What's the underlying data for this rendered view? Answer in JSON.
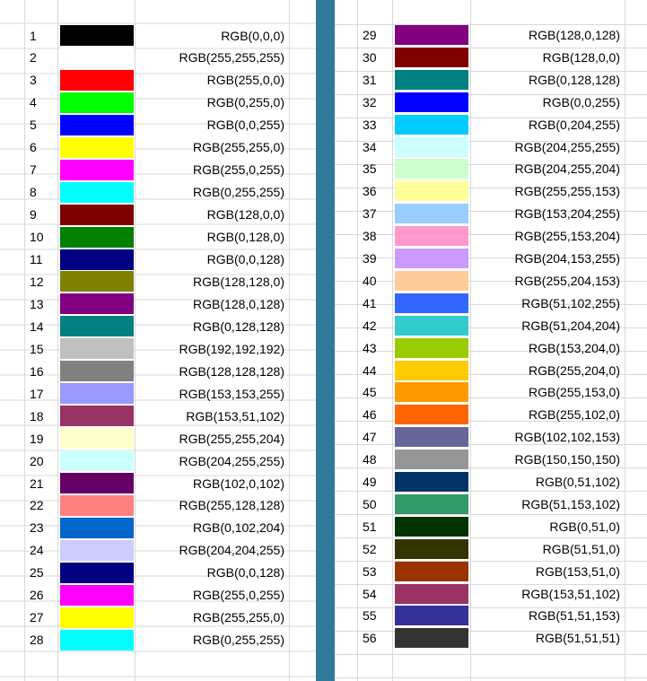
{
  "left_rows": [
    {
      "num": "1",
      "rgb": "RGB(0,0,0)",
      "color": "#000000"
    },
    {
      "num": "2",
      "rgb": "RGB(255,255,255)",
      "color": "#ffffff"
    },
    {
      "num": "3",
      "rgb": "RGB(255,0,0)",
      "color": "#ff0000"
    },
    {
      "num": "4",
      "rgb": "RGB(0,255,0)",
      "color": "#00ff00"
    },
    {
      "num": "5",
      "rgb": "RGB(0,0,255)",
      "color": "#0000ff"
    },
    {
      "num": "6",
      "rgb": "RGB(255,255,0)",
      "color": "#ffff00"
    },
    {
      "num": "7",
      "rgb": "RGB(255,0,255)",
      "color": "#ff00ff"
    },
    {
      "num": "8",
      "rgb": "RGB(0,255,255)",
      "color": "#00ffff"
    },
    {
      "num": "9",
      "rgb": "RGB(128,0,0)",
      "color": "#800000"
    },
    {
      "num": "10",
      "rgb": "RGB(0,128,0)",
      "color": "#008000"
    },
    {
      "num": "11",
      "rgb": "RGB(0,0,128)",
      "color": "#000080"
    },
    {
      "num": "12",
      "rgb": "RGB(128,128,0)",
      "color": "#808000"
    },
    {
      "num": "13",
      "rgb": "RGB(128,0,128)",
      "color": "#800080"
    },
    {
      "num": "14",
      "rgb": "RGB(0,128,128)",
      "color": "#008080"
    },
    {
      "num": "15",
      "rgb": "RGB(192,192,192)",
      "color": "#c0c0c0"
    },
    {
      "num": "16",
      "rgb": "RGB(128,128,128)",
      "color": "#808080"
    },
    {
      "num": "17",
      "rgb": "RGB(153,153,255)",
      "color": "#9999ff"
    },
    {
      "num": "18",
      "rgb": "RGB(153,51,102)",
      "color": "#993366"
    },
    {
      "num": "19",
      "rgb": "RGB(255,255,204)",
      "color": "#ffffcc"
    },
    {
      "num": "20",
      "rgb": "RGB(204,255,255)",
      "color": "#ccffff"
    },
    {
      "num": "21",
      "rgb": "RGB(102,0,102)",
      "color": "#660066"
    },
    {
      "num": "22",
      "rgb": "RGB(255,128,128)",
      "color": "#ff8080"
    },
    {
      "num": "23",
      "rgb": "RGB(0,102,204)",
      "color": "#0066cc"
    },
    {
      "num": "24",
      "rgb": "RGB(204,204,255)",
      "color": "#ccccff"
    },
    {
      "num": "25",
      "rgb": "RGB(0,0,128)",
      "color": "#000080"
    },
    {
      "num": "26",
      "rgb": "RGB(255,0,255)",
      "color": "#ff00ff"
    },
    {
      "num": "27",
      "rgb": "RGB(255,255,0)",
      "color": "#ffff00"
    },
    {
      "num": "28",
      "rgb": "RGB(0,255,255)",
      "color": "#00ffff"
    }
  ],
  "right_rows": [
    {
      "num": "29",
      "rgb": "RGB(128,0,128)",
      "color": "#800080"
    },
    {
      "num": "30",
      "rgb": "RGB(128,0,0)",
      "color": "#800000"
    },
    {
      "num": "31",
      "rgb": "RGB(0,128,128)",
      "color": "#008080"
    },
    {
      "num": "32",
      "rgb": "RGB(0,0,255)",
      "color": "#0000ff"
    },
    {
      "num": "33",
      "rgb": "RGB(0,204,255)",
      "color": "#00ccff"
    },
    {
      "num": "34",
      "rgb": "RGB(204,255,255)",
      "color": "#ccffff"
    },
    {
      "num": "35",
      "rgb": "RGB(204,255,204)",
      "color": "#ccffcc"
    },
    {
      "num": "36",
      "rgb": "RGB(255,255,153)",
      "color": "#ffff99"
    },
    {
      "num": "37",
      "rgb": "RGB(153,204,255)",
      "color": "#99ccff"
    },
    {
      "num": "38",
      "rgb": "RGB(255,153,204)",
      "color": "#ff99cc"
    },
    {
      "num": "39",
      "rgb": "RGB(204,153,255)",
      "color": "#cc99ff"
    },
    {
      "num": "40",
      "rgb": "RGB(255,204,153)",
      "color": "#ffcc99"
    },
    {
      "num": "41",
      "rgb": "RGB(51,102,255)",
      "color": "#3366ff"
    },
    {
      "num": "42",
      "rgb": "RGB(51,204,204)",
      "color": "#33cccc"
    },
    {
      "num": "43",
      "rgb": "RGB(153,204,0)",
      "color": "#99cc00"
    },
    {
      "num": "44",
      "rgb": "RGB(255,204,0)",
      "color": "#ffcc00"
    },
    {
      "num": "45",
      "rgb": "RGB(255,153,0)",
      "color": "#ff9900"
    },
    {
      "num": "46",
      "rgb": "RGB(255,102,0)",
      "color": "#ff6600"
    },
    {
      "num": "47",
      "rgb": "RGB(102,102,153)",
      "color": "#666699"
    },
    {
      "num": "48",
      "rgb": "RGB(150,150,150)",
      "color": "#969696"
    },
    {
      "num": "49",
      "rgb": "RGB(0,51,102)",
      "color": "#003366"
    },
    {
      "num": "50",
      "rgb": "RGB(51,153,102)",
      "color": "#339966"
    },
    {
      "num": "51",
      "rgb": "RGB(0,51,0)",
      "color": "#003300"
    },
    {
      "num": "52",
      "rgb": "RGB(51,51,0)",
      "color": "#333300"
    },
    {
      "num": "53",
      "rgb": "RGB(153,51,0)",
      "color": "#993300"
    },
    {
      "num": "54",
      "rgb": "RGB(153,51,102)",
      "color": "#993366"
    },
    {
      "num": "55",
      "rgb": "RGB(51,51,153)",
      "color": "#333399"
    },
    {
      "num": "56",
      "rgb": "RGB(51,51,51)",
      "color": "#333333"
    }
  ]
}
